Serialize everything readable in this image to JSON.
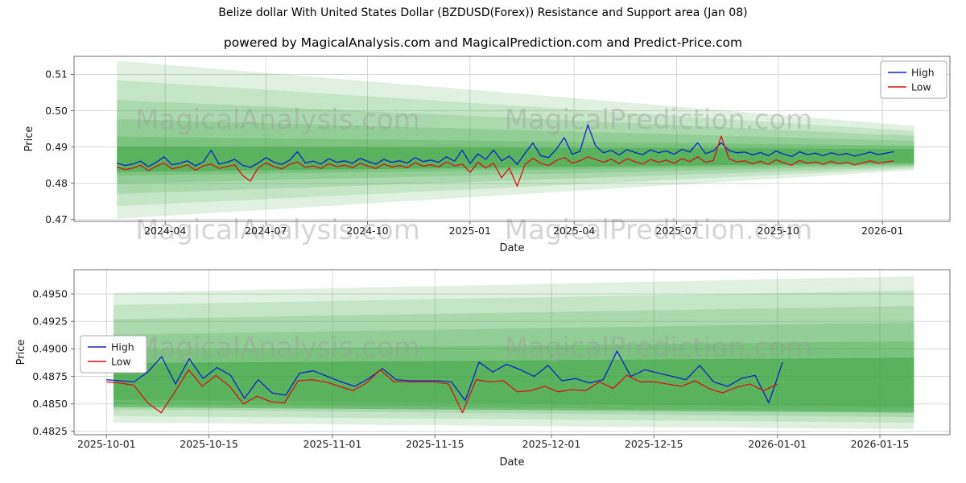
{
  "page": {
    "title": "Belize dollar With United States Dollar (BZDUSD(Forex)) Resistance and Support area (Jan 08)",
    "subtitle": "powered by MagicalAnalysis.com and MagicalPrediction.com and Predict-Price.com"
  },
  "colors": {
    "high": "#0b24cc",
    "low": "#dd1111",
    "band": "#2f9e33",
    "grid": "#d8d8d8",
    "frame": "#6f6f6f",
    "text": "#1a1a1a",
    "watermark": "#9a9a9a"
  },
  "chart_data": [
    {
      "type": "line",
      "xlabel": "Date",
      "ylabel": "Price",
      "ylim": [
        0.4695,
        0.515
      ],
      "yticks": [
        {
          "v": 0.47,
          "label": "0.47"
        },
        {
          "v": 0.48,
          "label": "0.48"
        },
        {
          "v": 0.49,
          "label": "0.49"
        },
        {
          "v": 0.5,
          "label": "0.50"
        },
        {
          "v": 0.51,
          "label": "0.51"
        }
      ],
      "xticks": [
        {
          "f": 0.104,
          "label": "2024-04"
        },
        {
          "f": 0.219,
          "label": "2024-07"
        },
        {
          "f": 0.335,
          "label": "2024-10"
        },
        {
          "f": 0.452,
          "label": "2025-01"
        },
        {
          "f": 0.571,
          "label": "2025-04"
        },
        {
          "f": 0.688,
          "label": "2025-07"
        },
        {
          "f": 0.804,
          "label": "2025-10"
        },
        {
          "f": 0.923,
          "label": "2026-01"
        }
      ],
      "bands": [
        {
          "x0": 0.049,
          "x1": 0.959,
          "t0": 0.5138,
          "t1": 0.4958,
          "b0": 0.4702,
          "b1": 0.4836,
          "op": 0.15
        },
        {
          "x0": 0.049,
          "x1": 0.959,
          "t0": 0.5084,
          "t1": 0.4944,
          "b0": 0.4737,
          "b1": 0.4841,
          "op": 0.15
        },
        {
          "x0": 0.049,
          "x1": 0.959,
          "t0": 0.503,
          "t1": 0.4931,
          "b0": 0.4771,
          "b1": 0.4845,
          "op": 0.17
        },
        {
          "x0": 0.049,
          "x1": 0.959,
          "t0": 0.4977,
          "t1": 0.4917,
          "b0": 0.4799,
          "b1": 0.4849,
          "op": 0.19
        },
        {
          "x0": 0.049,
          "x1": 0.959,
          "t0": 0.4929,
          "t1": 0.4904,
          "b0": 0.4821,
          "b1": 0.4852,
          "op": 0.23
        },
        {
          "x0": 0.049,
          "x1": 0.959,
          "t0": 0.4901,
          "t1": 0.4895,
          "b0": 0.4831,
          "b1": 0.4856,
          "op": 0.45
        }
      ],
      "series": [
        {
          "name": "High",
          "color": "high",
          "x0": 0.049,
          "x1": 0.936,
          "values": [
            0.4856,
            0.4849,
            0.4853,
            0.4861,
            0.4846,
            0.4858,
            0.4873,
            0.4851,
            0.4855,
            0.4862,
            0.4848,
            0.4859,
            0.4891,
            0.4853,
            0.4858,
            0.4866,
            0.485,
            0.4844,
            0.4856,
            0.4871,
            0.4858,
            0.4852,
            0.4864,
            0.4887,
            0.4856,
            0.4861,
            0.4853,
            0.4868,
            0.4858,
            0.4862,
            0.4855,
            0.4869,
            0.486,
            0.4853,
            0.4866,
            0.4858,
            0.4862,
            0.4856,
            0.4871,
            0.486,
            0.4864,
            0.4858,
            0.4873,
            0.4861,
            0.4891,
            0.4855,
            0.4881,
            0.4866,
            0.4892,
            0.4862,
            0.4875,
            0.4852,
            0.4883,
            0.4911,
            0.4876,
            0.4871,
            0.4894,
            0.4926,
            0.488,
            0.4888,
            0.4961,
            0.4903,
            0.4884,
            0.4891,
            0.4878,
            0.4893,
            0.4885,
            0.4879,
            0.4892,
            0.4884,
            0.4889,
            0.488,
            0.4894,
            0.4886,
            0.4912,
            0.4882,
            0.4889,
            0.4912,
            0.489,
            0.4884,
            0.4886,
            0.4878,
            0.4885,
            0.4876,
            0.4889,
            0.488,
            0.4874,
            0.4887,
            0.4879,
            0.4883,
            0.4876,
            0.4884,
            0.4878,
            0.4882,
            0.4875,
            0.488,
            0.4886,
            0.4879,
            0.4883,
            0.4887
          ]
        },
        {
          "name": "Low",
          "color": "low",
          "x0": 0.049,
          "x1": 0.936,
          "values": [
            0.4845,
            0.4838,
            0.4842,
            0.485,
            0.4835,
            0.4847,
            0.4856,
            0.484,
            0.4844,
            0.4851,
            0.4836,
            0.4848,
            0.4853,
            0.4841,
            0.4846,
            0.4851,
            0.4822,
            0.4806,
            0.4843,
            0.4856,
            0.4846,
            0.484,
            0.4852,
            0.4859,
            0.4844,
            0.4848,
            0.4841,
            0.4854,
            0.4846,
            0.485,
            0.4843,
            0.4855,
            0.4847,
            0.4841,
            0.4853,
            0.4845,
            0.4849,
            0.4843,
            0.4857,
            0.4847,
            0.4851,
            0.4845,
            0.4859,
            0.4848,
            0.4853,
            0.483,
            0.4858,
            0.4842,
            0.4856,
            0.4815,
            0.4842,
            0.4792,
            0.4852,
            0.4869,
            0.4855,
            0.4849,
            0.4863,
            0.4871,
            0.4856,
            0.4862,
            0.4873,
            0.4866,
            0.4858,
            0.4867,
            0.4854,
            0.4868,
            0.486,
            0.4853,
            0.4866,
            0.4858,
            0.4864,
            0.4855,
            0.4868,
            0.486,
            0.4873,
            0.4858,
            0.4863,
            0.493,
            0.4867,
            0.4859,
            0.4862,
            0.4854,
            0.4861,
            0.4852,
            0.4865,
            0.4856,
            0.485,
            0.4863,
            0.4855,
            0.4859,
            0.4852,
            0.4861,
            0.4854,
            0.4858,
            0.4851,
            0.4856,
            0.4862,
            0.4855,
            0.4859,
            0.4862
          ]
        }
      ],
      "legend": [
        "High",
        "Low"
      ],
      "watermarks": [
        "MagicalAnalysis.com",
        "MagicalPrediction.com"
      ]
    },
    {
      "type": "line",
      "xlabel": "Date",
      "ylabel": "Price",
      "ylim": [
        0.4822,
        0.4972
      ],
      "yticks": [
        {
          "v": 0.4825,
          "label": "0.4825"
        },
        {
          "v": 0.485,
          "label": "0.4850"
        },
        {
          "v": 0.4875,
          "label": "0.4875"
        },
        {
          "v": 0.49,
          "label": "0.4900"
        },
        {
          "v": 0.4925,
          "label": "0.4925"
        },
        {
          "v": 0.495,
          "label": "0.4950"
        }
      ],
      "xticks": [
        {
          "f": 0.037,
          "label": "2025-10-01"
        },
        {
          "f": 0.154,
          "label": "2025-10-15"
        },
        {
          "f": 0.295,
          "label": "2025-11-01"
        },
        {
          "f": 0.412,
          "label": "2025-11-15"
        },
        {
          "f": 0.545,
          "label": "2025-12-01"
        },
        {
          "f": 0.662,
          "label": "2025-12-15"
        },
        {
          "f": 0.803,
          "label": "2026-01-01"
        },
        {
          "f": 0.92,
          "label": "2026-01-15"
        }
      ],
      "bands": [
        {
          "x0": 0.045,
          "x1": 0.959,
          "t0": 0.4951,
          "t1": 0.4966,
          "b0": 0.4833,
          "b1": 0.4827,
          "op": 0.15
        },
        {
          "x0": 0.045,
          "x1": 0.959,
          "t0": 0.494,
          "t1": 0.4953,
          "b0": 0.4839,
          "b1": 0.4833,
          "op": 0.15
        },
        {
          "x0": 0.045,
          "x1": 0.959,
          "t0": 0.4927,
          "t1": 0.4939,
          "b0": 0.4845,
          "b1": 0.4838,
          "op": 0.17
        },
        {
          "x0": 0.045,
          "x1": 0.959,
          "t0": 0.4913,
          "t1": 0.4924,
          "b0": 0.485,
          "b1": 0.4843,
          "op": 0.19
        },
        {
          "x0": 0.045,
          "x1": 0.959,
          "t0": 0.4899,
          "t1": 0.4907,
          "b0": 0.4854,
          "b1": 0.4847,
          "op": 0.23
        },
        {
          "x0": 0.045,
          "x1": 0.959,
          "t0": 0.4887,
          "t1": 0.4892,
          "b0": 0.4847,
          "b1": 0.4842,
          "op": 0.45
        }
      ],
      "series": [
        {
          "name": "High",
          "color": "high",
          "x0": 0.037,
          "x1": 0.809,
          "values": [
            0.4872,
            0.4871,
            0.487,
            0.4879,
            0.4893,
            0.4868,
            0.4891,
            0.4873,
            0.4883,
            0.4876,
            0.4855,
            0.4872,
            0.486,
            0.4858,
            0.4878,
            0.488,
            0.4875,
            0.487,
            0.4866,
            0.4873,
            0.4882,
            0.4872,
            0.4871,
            0.4871,
            0.4871,
            0.487,
            0.4853,
            0.4888,
            0.4879,
            0.4886,
            0.4881,
            0.4875,
            0.4885,
            0.4871,
            0.4873,
            0.4869,
            0.4872,
            0.4898,
            0.4875,
            0.4881,
            0.4878,
            0.4875,
            0.4872,
            0.4885,
            0.487,
            0.4866,
            0.4873,
            0.4876,
            0.4851,
            0.4888
          ]
        },
        {
          "name": "Low",
          "color": "low",
          "x0": 0.037,
          "x1": 0.803,
          "values": [
            0.487,
            0.4869,
            0.4867,
            0.4851,
            0.4842,
            0.4861,
            0.4881,
            0.4866,
            0.4876,
            0.4866,
            0.485,
            0.4857,
            0.4852,
            0.4851,
            0.4871,
            0.4872,
            0.487,
            0.4866,
            0.4862,
            0.4869,
            0.4881,
            0.487,
            0.487,
            0.487,
            0.487,
            0.4868,
            0.4842,
            0.4872,
            0.487,
            0.4871,
            0.4861,
            0.4862,
            0.4866,
            0.4861,
            0.4863,
            0.4862,
            0.487,
            0.4864,
            0.4876,
            0.487,
            0.487,
            0.4868,
            0.4866,
            0.4871,
            0.4864,
            0.486,
            0.4865,
            0.4868,
            0.4862,
            0.4868
          ]
        }
      ],
      "legend": [
        "High",
        "Low"
      ],
      "watermarks": [
        "MagicalAnalysis.com",
        "MagicalPrediction.com"
      ]
    }
  ]
}
